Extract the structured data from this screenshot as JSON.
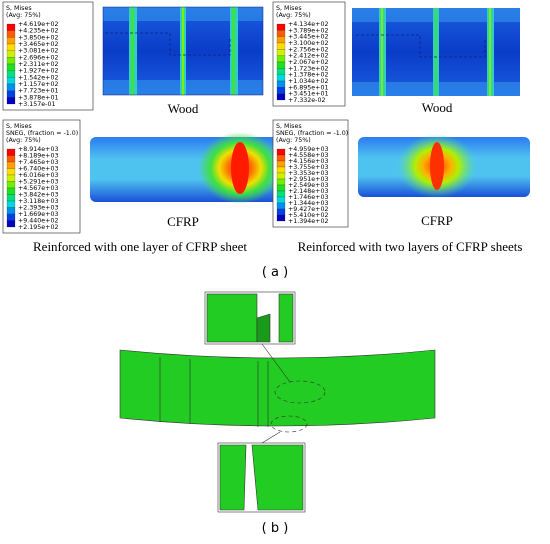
{
  "legends": [
    {
      "header": [
        "S, Mises",
        "(Avg: 75%)"
      ],
      "values": [
        "+4.619e+02",
        "+4.235e+02",
        "+3.850e+02",
        "+3.465e+02",
        "+3.081e+02",
        "+2.696e+02",
        "+2.311e+02",
        "+1.927e+02",
        "+1.542e+02",
        "+1.157e+02",
        "+7.723e+01",
        "+3.878e+01",
        "+3.157e-01"
      ]
    },
    {
      "header": [
        "S, Mises",
        "(Avg: 75%)"
      ],
      "values": [
        "+4.134e+02",
        "+3.789e+02",
        "+3.445e+02",
        "+3.100e+02",
        "+2.756e+02",
        "+2.412e+02",
        "+2.067e+02",
        "+1.723e+02",
        "+1.378e+02",
        "+1.034e+02",
        "+6.895e+01",
        "+3.451e+01",
        "+7.332e-02"
      ]
    },
    {
      "header": [
        "S, Mises",
        "SNEG, (fraction = -1.0)",
        "(Avg: 75%)"
      ],
      "values": [
        "+8.914e+03",
        "+8.189e+03",
        "+7.465e+03",
        "+6.740e+03",
        "+6.016e+03",
        "+5.291e+03",
        "+4.567e+03",
        "+3.842e+03",
        "+3.118e+03",
        "+2.393e+03",
        "+1.669e+03",
        "+9.440e+02",
        "+2.195e+02"
      ]
    },
    {
      "header": [
        "S, Mises",
        "SNEG, (fraction = -1.0)",
        "(Avg: 75%)"
      ],
      "values": [
        "+4.959e+03",
        "+4.558e+03",
        "+4.156e+03",
        "+3.755e+03",
        "+3.353e+03",
        "+2.951e+03",
        "+2.549e+03",
        "+2.148e+03",
        "+1.746e+03",
        "+1.344e+03",
        "+9.427e+02",
        "+5.410e+02",
        "+1.394e+02"
      ]
    }
  ],
  "labels": [
    "Wood",
    "Wood",
    "CFRP",
    "CFRP"
  ],
  "captions": [
    "Reinforced with one layer of CFRP sheet",
    "Reinforced with two layers of CFRP sheets"
  ],
  "panel_labels": [
    "( a )",
    "( b )"
  ]
}
